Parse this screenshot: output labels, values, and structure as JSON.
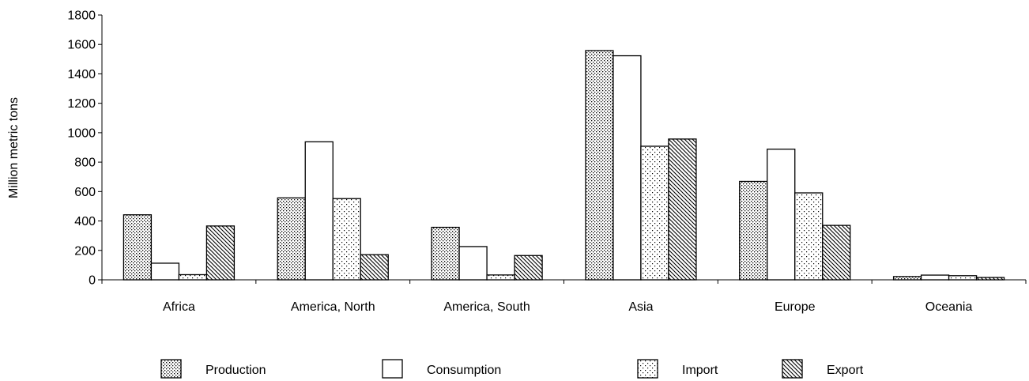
{
  "chart_data": {
    "type": "bar",
    "ylabel": "Million metric tons",
    "xlabel": "",
    "ylim": [
      0,
      1800
    ],
    "yticks": [
      0,
      200,
      400,
      600,
      800,
      1000,
      1200,
      1400,
      1600,
      1800
    ],
    "categories": [
      "Africa",
      "America, North",
      "America, South",
      "Asia",
      "Europe",
      "Oceania"
    ],
    "series": [
      {
        "name": "Production",
        "pattern": "dense-dots",
        "values": [
          442,
          557,
          357,
          1558,
          669,
          22
        ]
      },
      {
        "name": "Consumption",
        "pattern": "none",
        "values": [
          113,
          938,
          226,
          1523,
          888,
          32
        ]
      },
      {
        "name": "Import",
        "pattern": "sparse-dots",
        "values": [
          35,
          552,
          33,
          908,
          591,
          28
        ]
      },
      {
        "name": "Export",
        "pattern": "diagonal",
        "values": [
          366,
          171,
          165,
          957,
          370,
          16
        ]
      }
    ],
    "grid": false,
    "legend_position": "bottom"
  }
}
